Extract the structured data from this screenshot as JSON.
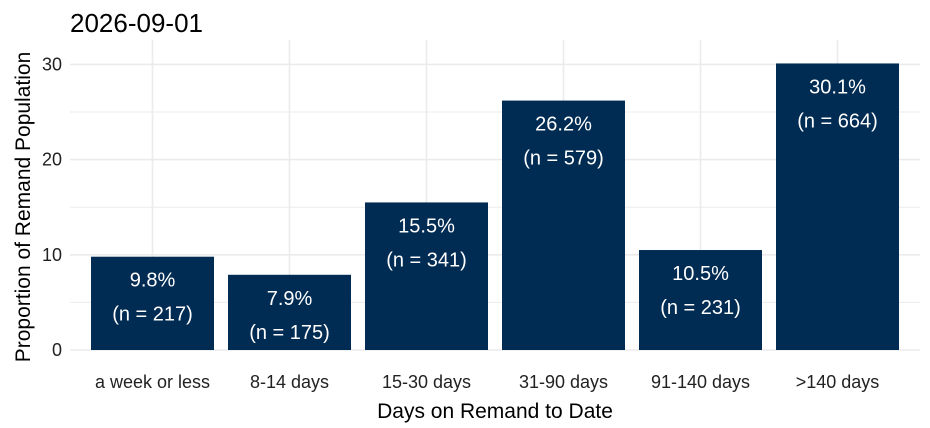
{
  "chart_data": {
    "type": "bar",
    "title": "2026-09-01",
    "xlabel": "Days on Remand to Date",
    "ylabel": "Proportion of Remand Population",
    "categories": [
      "a week or less",
      "8-14 days",
      "15-30 days",
      "31-90 days",
      "91-140 days",
      ">140 days"
    ],
    "values": [
      9.8,
      7.9,
      15.5,
      26.2,
      10.5,
      30.1
    ],
    "counts": [
      217,
      175,
      341,
      579,
      231,
      664
    ],
    "percent_labels": [
      "9.8%",
      "7.9%",
      "15.5%",
      "26.2%",
      "10.5%",
      "30.1%"
    ],
    "count_labels": [
      "(n = 217)",
      "(n = 175)",
      "(n = 341)",
      "(n = 579)",
      "(n = 231)",
      "(n = 664)"
    ],
    "yticks": [
      0,
      10,
      20,
      30
    ],
    "ylim": [
      0,
      31
    ],
    "grid": true,
    "bar_color": "#002b52",
    "grid_color": "#ebebeb"
  }
}
